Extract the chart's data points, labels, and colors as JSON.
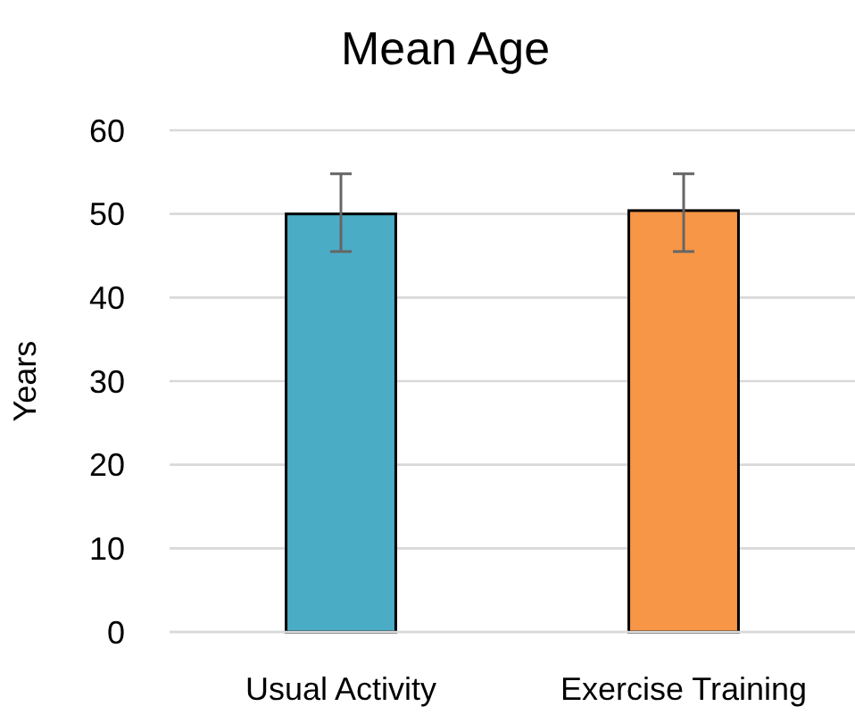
{
  "chart_data": {
    "type": "bar",
    "title": "Mean Age",
    "ylabel": "Years",
    "categories": [
      "Usual Activity",
      "Exercise Training"
    ],
    "values": [
      50,
      50.4
    ],
    "colors": [
      "#4bacc6",
      "#f79646"
    ],
    "errors": [
      [
        45.5,
        54.8
      ],
      [
        45.5,
        54.8
      ]
    ],
    "ylim": [
      0,
      60
    ],
    "yticks": [
      0,
      10,
      20,
      30,
      40,
      50,
      60
    ],
    "grid": "y"
  }
}
